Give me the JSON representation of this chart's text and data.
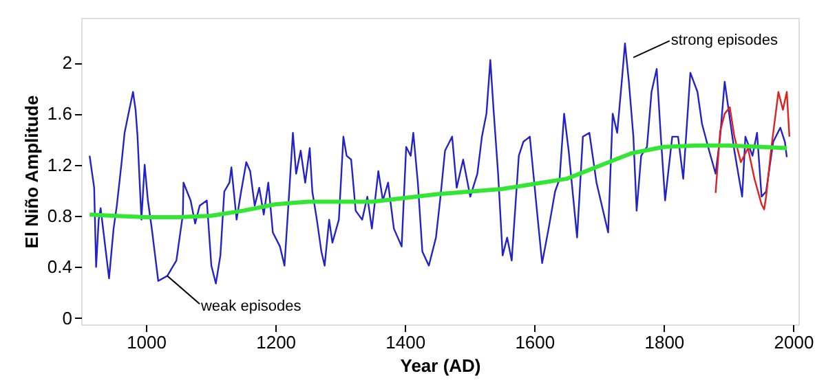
{
  "chart_data": {
    "type": "line",
    "xlabel": "Year (AD)",
    "ylabel": "El Niño Amplitude",
    "xlim": [
      900,
      2008
    ],
    "ylim": [
      -0.05,
      2.35
    ],
    "xticks": [
      1000,
      1200,
      1400,
      1600,
      1800,
      2000
    ],
    "yticks": [
      0,
      0.4,
      0.8,
      1.2,
      1.6,
      2
    ],
    "grid": false,
    "marker": "none",
    "line_style": "solid",
    "annotations": [
      {
        "text": "strong episodes",
        "x": 1753,
        "y": 2.04
      },
      {
        "text": "weak episodes",
        "x": 1033,
        "y": 0.33
      }
    ],
    "series": [
      {
        "color": "#2222c8",
        "x": [
          913,
          920,
          923,
          927,
          930,
          943,
          950,
          955,
          962,
          967,
          973,
          980,
          984,
          987,
          993,
          998,
          1003,
          1009,
          1019,
          1033,
          1047,
          1057,
          1058,
          1069,
          1076,
          1083,
          1094,
          1101,
          1108,
          1115,
          1121,
          1129,
          1132,
          1140,
          1147,
          1155,
          1161,
          1168,
          1175,
          1182,
          1189,
          1196,
          1207,
          1214,
          1220,
          1227,
          1232,
          1239,
          1246,
          1253,
          1257,
          1264,
          1271,
          1276,
          1283,
          1288,
          1298,
          1305,
          1310,
          1317,
          1324,
          1334,
          1342,
          1349,
          1359,
          1366,
          1374,
          1383,
          1395,
          1402,
          1409,
          1413,
          1420,
          1427,
          1437,
          1448,
          1455,
          1462,
          1473,
          1480,
          1490,
          1501,
          1512,
          1519,
          1526,
          1532,
          1537,
          1544,
          1551,
          1558,
          1565,
          1576,
          1583,
          1593,
          1604,
          1612,
          1622,
          1632,
          1639,
          1646,
          1653,
          1666,
          1675,
          1685,
          1696,
          1714,
          1721,
          1728,
          1735,
          1740,
          1746,
          1753,
          1758,
          1765,
          1774,
          1781,
          1789,
          1795,
          1802,
          1813,
          1822,
          1830,
          1841,
          1852,
          1859,
          1870,
          1880,
          1887,
          1894,
          1902,
          1909,
          1921,
          1926,
          1937,
          1944,
          1951,
          1958,
          1969,
          1980,
          1987,
          1990
        ],
        "values": [
          1.27,
          1.02,
          0.4,
          0.77,
          0.86,
          0.31,
          0.7,
          0.88,
          1.2,
          1.45,
          1.6,
          1.77,
          1.63,
          1.42,
          0.77,
          1.2,
          0.92,
          0.7,
          0.29,
          0.33,
          0.45,
          0.81,
          1.06,
          0.92,
          0.74,
          0.88,
          0.92,
          0.41,
          0.27,
          0.49,
          0.99,
          1.06,
          1.18,
          0.77,
          0.99,
          1.22,
          1.15,
          0.88,
          1.02,
          0.81,
          1.06,
          0.67,
          0.56,
          0.41,
          0.88,
          1.45,
          1.13,
          1.31,
          1.06,
          1.33,
          0.99,
          0.77,
          0.52,
          0.41,
          0.77,
          0.59,
          0.77,
          1.42,
          1.27,
          1.24,
          0.84,
          0.77,
          0.95,
          0.7,
          1.15,
          0.92,
          1.06,
          0.7,
          0.56,
          1.34,
          1.27,
          1.45,
          1.06,
          0.52,
          0.41,
          0.63,
          0.95,
          1.31,
          1.42,
          1.02,
          1.24,
          0.95,
          1.13,
          1.42,
          1.6,
          2.02,
          1.63,
          1.13,
          0.49,
          0.63,
          0.45,
          1.27,
          1.38,
          1.42,
          0.84,
          0.43,
          0.7,
          0.99,
          1.09,
          1.6,
          1.31,
          0.63,
          1.42,
          1.45,
          1.06,
          0.67,
          1.6,
          1.45,
          1.85,
          2.15,
          1.85,
          1.42,
          0.84,
          1.27,
          1.34,
          1.77,
          1.95,
          1.45,
          0.92,
          1.42,
          1.42,
          1.09,
          1.92,
          1.77,
          1.52,
          1.31,
          1.13,
          1.42,
          1.85,
          1.56,
          1.31,
          0.95,
          1.42,
          1.27,
          1.45,
          0.95,
          0.99,
          1.38,
          1.49,
          1.38,
          1.26
        ]
      },
      {
        "color": "#e02020",
        "x": [
          1880,
          1887,
          1894,
          1902,
          1909,
          1919,
          1930,
          1940,
          1951,
          1955,
          1958,
          1966,
          1977,
          1984,
          1990,
          1994
        ],
        "values": [
          0.98,
          1.46,
          1.6,
          1.65,
          1.42,
          1.22,
          1.33,
          1.09,
          0.89,
          0.85,
          0.95,
          1.33,
          1.77,
          1.63,
          1.77,
          1.42
        ]
      },
      {
        "color": "#33e633",
        "x": [
          913,
          950,
          1000,
          1050,
          1100,
          1150,
          1200,
          1250,
          1300,
          1350,
          1400,
          1450,
          1500,
          1550,
          1600,
          1650,
          1700,
          1750,
          1800,
          1850,
          1900,
          1950,
          1990
        ],
        "values": [
          0.81,
          0.8,
          0.79,
          0.79,
          0.8,
          0.84,
          0.89,
          0.91,
          0.91,
          0.91,
          0.94,
          0.97,
          0.99,
          1.01,
          1.05,
          1.09,
          1.19,
          1.29,
          1.34,
          1.35,
          1.35,
          1.34,
          1.33
        ]
      }
    ]
  }
}
